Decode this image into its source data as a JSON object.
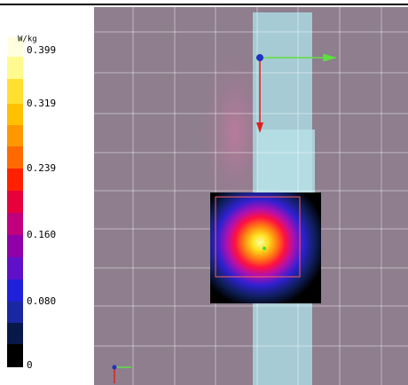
{
  "colorbar": {
    "unit": "W/kg",
    "ticks": [
      "0.399",
      "0.319",
      "0.239",
      "0.160",
      "0.080",
      "0"
    ]
  }
}
